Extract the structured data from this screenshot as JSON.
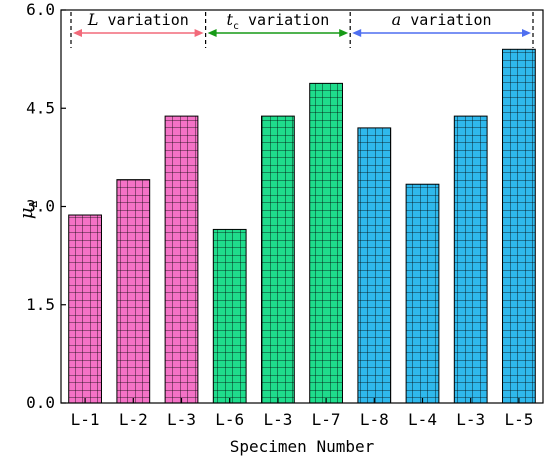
{
  "chart_data": {
    "type": "bar",
    "categories": [
      "L-1",
      "L-2",
      "L-3",
      "L-6",
      "L-3",
      "L-7",
      "L-8",
      "L-4",
      "L-3",
      "L-5"
    ],
    "values": [
      2.87,
      3.41,
      4.38,
      2.65,
      4.38,
      4.88,
      4.2,
      3.34,
      4.38,
      5.4
    ],
    "bar_colors": [
      "#f472c6",
      "#f472c6",
      "#f472c6",
      "#1fdc8c",
      "#1fdc8c",
      "#1fdc8c",
      "#2fb8ec",
      "#2fb8ec",
      "#2fb8ec",
      "#2fb8ec"
    ],
    "xlabel": "Specimen Number",
    "ylabel": {
      "symbol": "μ",
      "subscript": "Δ"
    },
    "ylim": [
      0,
      6
    ],
    "yticks": [
      "0.0",
      "1.5",
      "3.0",
      "4.5",
      "6.0"
    ],
    "ytick_values": [
      0,
      1.5,
      3.0,
      4.5,
      6.0
    ],
    "hatch": "grid",
    "groups": [
      {
        "symbol": "L",
        "subscript": "",
        "label": "variation",
        "color": "#f26a7a",
        "from": 0,
        "to": 2
      },
      {
        "symbol": "t",
        "subscript": "c",
        "label": "variation",
        "color": "#169a16",
        "from": 3,
        "to": 5
      },
      {
        "symbol": "a",
        "subscript": "",
        "label": "variation",
        "color": "#4f6ff0",
        "from": 6,
        "to": 9
      }
    ]
  }
}
